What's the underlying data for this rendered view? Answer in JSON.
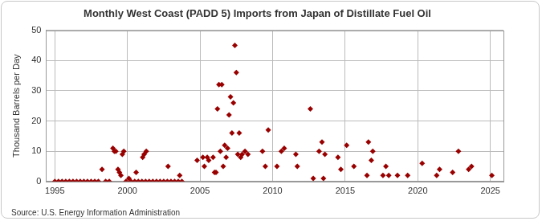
{
  "chart_data": {
    "type": "scatter",
    "title": "Monthly West Coast (PADD 5) Imports from Japan of Distillate Fuel Oil",
    "y_label": "Thousand Barrels per Day",
    "source": "Source: U.S. Energy Information Administration",
    "color": "#990000",
    "marker": "diamond",
    "grid": true,
    "xlim": [
      1994.4,
      2025.9
    ],
    "xticks": [
      1995,
      2000,
      2005,
      2010,
      2015,
      2020,
      2025
    ],
    "ylim": [
      0,
      50
    ],
    "yticks": [
      0,
      10,
      20,
      30,
      40,
      50
    ],
    "x": [
      1995,
      1995.25,
      1995.5,
      1995.75,
      1996,
      1996.25,
      1996.5,
      1996.75,
      1997,
      1997.25,
      1997.5,
      1997.75,
      1998,
      1998.25,
      1998.5,
      1998.75,
      1999,
      1999.1,
      1999.2,
      1999.35,
      1999.45,
      1999.55,
      1999.65,
      1999.75,
      1999.9,
      2000.25,
      2000.5,
      2000.75,
      2001,
      2001.25,
      2001.5,
      2001.75,
      2002,
      2002.25,
      2002.5,
      2002.75,
      2003,
      2003.25,
      2003.5,
      2003.75,
      2000.1,
      2000.6,
      2001.05,
      2001.15,
      2001.3,
      2002.8,
      2003.6,
      2004.8,
      2005.2,
      2005.3,
      2005.5,
      2005.6,
      2005.9,
      2006.0,
      2006.1,
      2006.2,
      2006.3,
      2006.4,
      2006.5,
      2006.6,
      2006.7,
      2006.8,
      2006.9,
      2007.0,
      2007.1,
      2007.2,
      2007.3,
      2007.4,
      2007.5,
      2007.6,
      2007.7,
      2007.8,
      2007.9,
      2008.1,
      2008.3,
      2009.3,
      2009.5,
      2009.7,
      2010.3,
      2010.6,
      2010.8,
      2011.6,
      2011.7,
      2012.6,
      2012.8,
      2013.2,
      2013.4,
      2013.5,
      2013.6,
      2014.5,
      2014.7,
      2015.1,
      2015.6,
      2016.5,
      2016.6,
      2016.8,
      2016.9,
      2017.6,
      2017.8,
      2018.0,
      2018.6,
      2019.3,
      2020.3,
      2021.3,
      2021.5,
      2022.4,
      2022.8,
      2023.5,
      2023.7,
      2025.1
    ],
    "values": [
      0,
      0,
      0,
      0,
      0,
      0,
      0,
      0,
      0,
      0,
      0,
      0,
      0,
      4,
      0,
      0,
      11,
      10,
      10,
      4,
      3,
      2,
      9,
      10,
      0,
      0,
      0,
      0,
      0,
      0,
      0,
      0,
      0,
      0,
      0,
      0,
      0,
      0,
      0,
      0,
      1,
      3,
      8,
      9,
      10,
      5,
      2,
      7,
      8,
      5,
      8,
      7,
      8,
      3,
      3,
      24,
      32,
      10,
      32,
      5,
      12,
      8,
      11,
      22,
      28,
      16,
      26,
      45,
      36,
      9,
      16,
      8,
      9,
      10,
      9,
      10,
      5,
      17,
      5,
      10,
      11,
      9,
      5,
      24,
      1,
      10,
      13,
      1,
      9,
      8,
      4,
      12,
      5,
      2,
      13,
      7,
      10,
      2,
      5,
      2,
      2,
      2,
      6,
      2,
      4,
      3,
      10,
      4,
      5,
      2
    ]
  }
}
